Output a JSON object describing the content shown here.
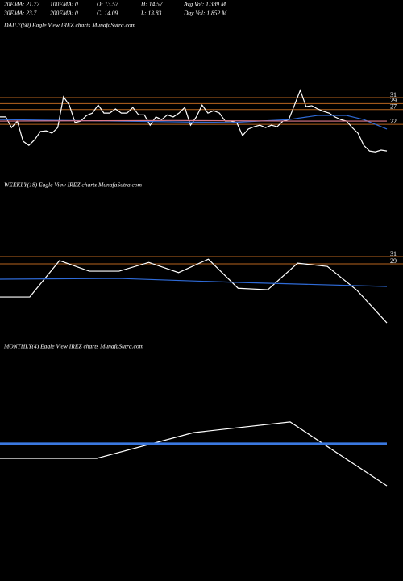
{
  "header": {
    "rows": [
      [
        "20EMA: 21.77",
        "100EMA: 0",
        "O: 13.57",
        "H: 14.57",
        "Avg Vol: 1.389 M"
      ],
      [
        "30EMA: 23.7",
        "200EMA: 0",
        "C: 14.09",
        "L: 13.83",
        "Day Vol: 1.852 M"
      ]
    ]
  },
  "chart_data": [
    {
      "type": "line",
      "title": "DAILY(60) Eagle  View  IREZ charts MunafaSutra.com",
      "ylim": [
        9.5,
        58.5
      ],
      "yticks": [
        31,
        29,
        27,
        22
      ],
      "grid": true,
      "grid_color": "#b8651e",
      "series": [
        {
          "color": "#ffffff",
          "values": [
            24.5,
            24.5,
            20.9,
            23.1,
            16.3,
            14.9,
            16.8,
            19.6,
            19.8,
            19.0,
            20.9,
            31.3,
            28.5,
            22.6,
            23.1,
            25.0,
            25.8,
            28.5,
            25.8,
            25.8,
            27.2,
            25.8,
            25.8,
            27.7,
            25.2,
            25.2,
            21.7,
            24.5,
            23.6,
            25.2,
            24.5,
            25.8,
            27.7,
            21.7,
            24.5,
            28.5,
            25.8,
            26.6,
            25.8,
            23.1,
            23.1,
            22.6,
            18.2,
            20.4,
            21.2,
            21.7,
            20.9,
            21.7,
            21.2,
            23.1,
            23.6,
            28.5,
            33.5,
            28.0,
            28.3,
            27.2,
            26.4,
            25.8,
            24.5,
            23.6,
            23.1,
            20.9,
            19.0,
            14.9,
            13.0,
            12.7,
            13.3,
            13.0
          ]
        },
        {
          "color": "#2f6bd8",
          "x": [
            0,
            20,
            40,
            50,
            55,
            60,
            63,
            67
          ],
          "values": [
            23.6,
            23.1,
            22.6,
            23.6,
            25.0,
            25.0,
            23.6,
            20.4
          ]
        },
        {
          "color": "#e07a8a",
          "x": [
            0,
            30,
            50,
            67
          ],
          "values": [
            23.1,
            23.3,
            23.1,
            23.1
          ]
        }
      ]
    },
    {
      "type": "line",
      "title": "WEEKLY(18) Eagle  View  IREZ charts MunafaSutra.com",
      "ylim": [
        10.6,
        48.3
      ],
      "yticks": [
        31,
        29
      ],
      "grid": true,
      "grid_color": "#b8651e",
      "series": [
        {
          "color": "#ffffff",
          "values": [
            19.9,
            19.9,
            29.9,
            27.0,
            27.0,
            29.4,
            26.6,
            30.3,
            22.3,
            21.9,
            29.2,
            28.3,
            21.7,
            12.8
          ]
        },
        {
          "color": "#2f6bd8",
          "x": [
            0,
            4,
            8,
            13
          ],
          "values": [
            24.8,
            25.0,
            23.9,
            22.8
          ]
        }
      ]
    },
    {
      "type": "line",
      "title": "MONTHLY(4) Eagle  View  IREZ charts MunafaSutra.com",
      "ylim": [
        0,
        100
      ],
      "series": [
        {
          "color": "#ffffff",
          "values": [
            52.6,
            52.6,
            64.4,
            69.3,
            40.0
          ]
        },
        {
          "color": "#3a78e0",
          "width": 3,
          "x": [
            0,
            4
          ],
          "values": [
            59.3,
            59.3
          ]
        }
      ]
    }
  ]
}
